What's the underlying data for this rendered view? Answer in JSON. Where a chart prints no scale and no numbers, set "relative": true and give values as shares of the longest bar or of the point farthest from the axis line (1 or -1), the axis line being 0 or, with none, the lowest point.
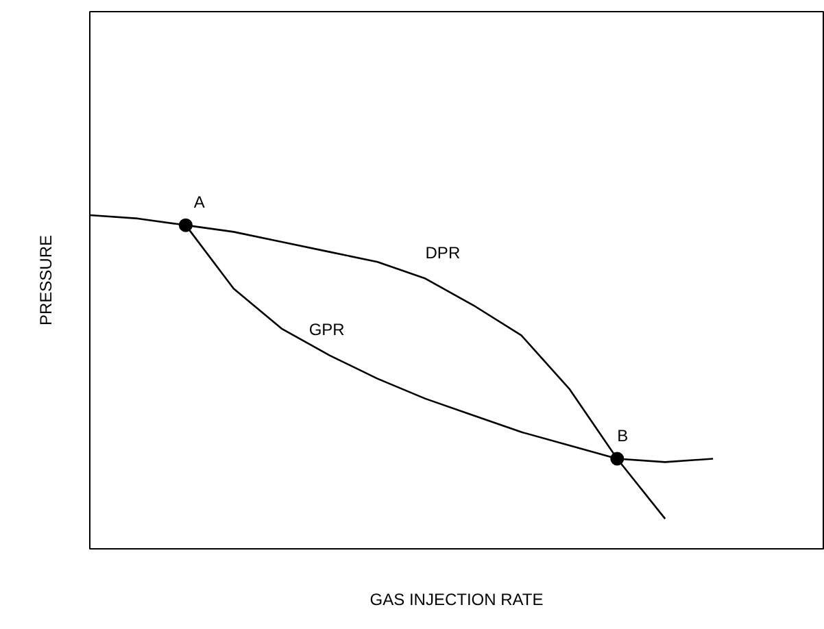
{
  "chart_data": {
    "type": "line",
    "relative": true,
    "xlabel": "GAS INJECTION RATE",
    "ylabel": "PRESSURE",
    "categories": [
      null,
      null,
      null,
      null,
      null,
      null,
      null,
      null,
      null,
      null,
      null,
      null,
      null,
      null,
      null,
      null
    ],
    "series": [
      {
        "name": "DPR",
        "color": "#000000",
        "values": [
          1.0,
          0.99,
          0.97,
          0.95,
          0.92,
          0.89,
          0.86,
          0.81,
          0.73,
          0.64,
          0.48,
          0.27,
          0.09,
          null,
          null,
          null
        ]
      },
      {
        "name": "GPR",
        "color": "#000000",
        "values": [
          null,
          null,
          0.97,
          0.78,
          0.66,
          0.58,
          0.51,
          0.45,
          0.4,
          0.35,
          0.31,
          0.27,
          0.26,
          0.27,
          null,
          null
        ]
      }
    ],
    "annotations": [
      {
        "text": "A",
        "y": 0.97
      },
      {
        "text": "B",
        "y": 0.27
      }
    ],
    "marker": "none",
    "line_style": "solid"
  }
}
